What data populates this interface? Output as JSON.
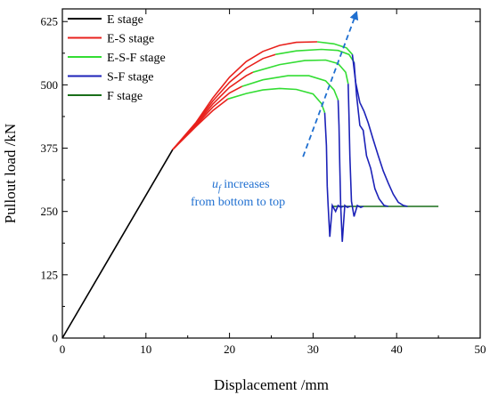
{
  "chart_data": {
    "type": "line",
    "xlabel": "Displacement /mm",
    "ylabel": "Pullout load /kN",
    "xlim": [
      0,
      50
    ],
    "ylim": [
      0,
      650
    ],
    "xticks": [
      0,
      10,
      20,
      30,
      40,
      50
    ],
    "yticks": [
      0,
      125,
      250,
      375,
      500,
      625
    ],
    "grid": false,
    "legend_position": "top-left",
    "legend": [
      {
        "name": "E stage",
        "color": "#000000"
      },
      {
        "name": "E-S stage",
        "color": "#e8211c"
      },
      {
        "name": "E-S-F stage",
        "color": "#33dd33"
      },
      {
        "name": "S-F stage",
        "color": "#1c22b8"
      },
      {
        "name": "F stage",
        "color": "#1a6e1a"
      }
    ],
    "annotation": {
      "symbol": "u",
      "subscript": "f",
      "line1": " increases",
      "line2": "from bottom to top",
      "color": "#1f6fd0",
      "arrow_from": [
        28.8,
        358
      ],
      "arrow_to": [
        35.2,
        643
      ]
    },
    "e_stage": [
      [
        0,
        0
      ],
      [
        13.2,
        372
      ]
    ],
    "es_start": [
      13.2,
      372
    ],
    "f_stage": [
      [
        32.2,
        260
      ],
      [
        45,
        260
      ]
    ],
    "curves": [
      {
        "es": [
          [
            16,
            418
          ],
          [
            18,
            449
          ],
          [
            19.8,
            472
          ]
        ],
        "esf": [
          [
            19.8,
            472
          ],
          [
            22,
            483
          ],
          [
            24,
            490
          ],
          [
            26,
            493
          ],
          [
            28,
            491
          ],
          [
            30,
            482
          ],
          [
            31,
            463
          ],
          [
            31.4,
            445
          ]
        ],
        "sf": [
          [
            31.4,
            445
          ],
          [
            31.6,
            380
          ],
          [
            31.7,
            300
          ],
          [
            31.8,
            262
          ],
          [
            32,
            200
          ],
          [
            32.3,
            262
          ],
          [
            32.7,
            250
          ],
          [
            33,
            262
          ],
          [
            33.3,
            258
          ],
          [
            33.6,
            260
          ]
        ]
      },
      {
        "es": [
          [
            16,
            420
          ],
          [
            18,
            456
          ],
          [
            20,
            484
          ],
          [
            21.5,
            497
          ]
        ],
        "esf": [
          [
            21.5,
            497
          ],
          [
            24,
            510
          ],
          [
            27,
            518
          ],
          [
            29.5,
            518
          ],
          [
            31.5,
            508
          ],
          [
            32.5,
            490
          ],
          [
            33,
            470
          ]
        ],
        "sf": [
          [
            33,
            470
          ],
          [
            33.1,
            420
          ],
          [
            33.2,
            340
          ],
          [
            33.3,
            262
          ],
          [
            33.5,
            190
          ],
          [
            33.8,
            262
          ],
          [
            34.1,
            258
          ],
          [
            34.4,
            260
          ]
        ]
      },
      {
        "es": [
          [
            16,
            422
          ],
          [
            18,
            462
          ],
          [
            20,
            495
          ],
          [
            22,
            518
          ],
          [
            22.8,
            525
          ]
        ],
        "esf": [
          [
            22.8,
            525
          ],
          [
            26,
            540
          ],
          [
            29,
            548
          ],
          [
            31.5,
            549
          ],
          [
            33,
            542
          ],
          [
            33.9,
            525
          ],
          [
            34.2,
            502
          ]
        ],
        "sf": [
          [
            34.2,
            502
          ],
          [
            34.3,
            440
          ],
          [
            34.4,
            360
          ],
          [
            34.6,
            270
          ],
          [
            34.9,
            240
          ],
          [
            35.3,
            262
          ],
          [
            35.7,
            258
          ],
          [
            36,
            260
          ]
        ]
      },
      {
        "es": [
          [
            16,
            424
          ],
          [
            18,
            468
          ],
          [
            20,
            505
          ],
          [
            22,
            533
          ],
          [
            24,
            552
          ],
          [
            25.5,
            560
          ]
        ],
        "esf": [
          [
            25.5,
            560
          ],
          [
            28,
            567
          ],
          [
            31,
            570
          ],
          [
            33,
            568
          ],
          [
            34.3,
            560
          ],
          [
            34.9,
            545
          ]
        ],
        "sf": [
          [
            34.9,
            545
          ],
          [
            35.2,
            480
          ],
          [
            35.6,
            420
          ],
          [
            36,
            410
          ],
          [
            36.4,
            360
          ],
          [
            36.9,
            335
          ],
          [
            37.4,
            295
          ],
          [
            37.9,
            275
          ],
          [
            38.5,
            262
          ],
          [
            39,
            260
          ]
        ]
      },
      {
        "es": [
          [
            16,
            426
          ],
          [
            18,
            474
          ],
          [
            20,
            515
          ],
          [
            22,
            546
          ],
          [
            24,
            566
          ],
          [
            26,
            578
          ],
          [
            28,
            584
          ],
          [
            30.5,
            585
          ]
        ],
        "esf": [
          [
            30.5,
            585
          ],
          [
            32.5,
            581
          ],
          [
            34,
            573
          ],
          [
            34.7,
            560
          ]
        ],
        "sf": [
          [
            34.7,
            560
          ],
          [
            35.1,
            505
          ],
          [
            35.6,
            465
          ],
          [
            36.1,
            448
          ],
          [
            36.6,
            425
          ],
          [
            37.2,
            392
          ],
          [
            37.8,
            360
          ],
          [
            38.4,
            330
          ],
          [
            39,
            306
          ],
          [
            39.6,
            284
          ],
          [
            40.2,
            268
          ],
          [
            40.8,
            262
          ],
          [
            41.3,
            260
          ]
        ]
      }
    ]
  }
}
